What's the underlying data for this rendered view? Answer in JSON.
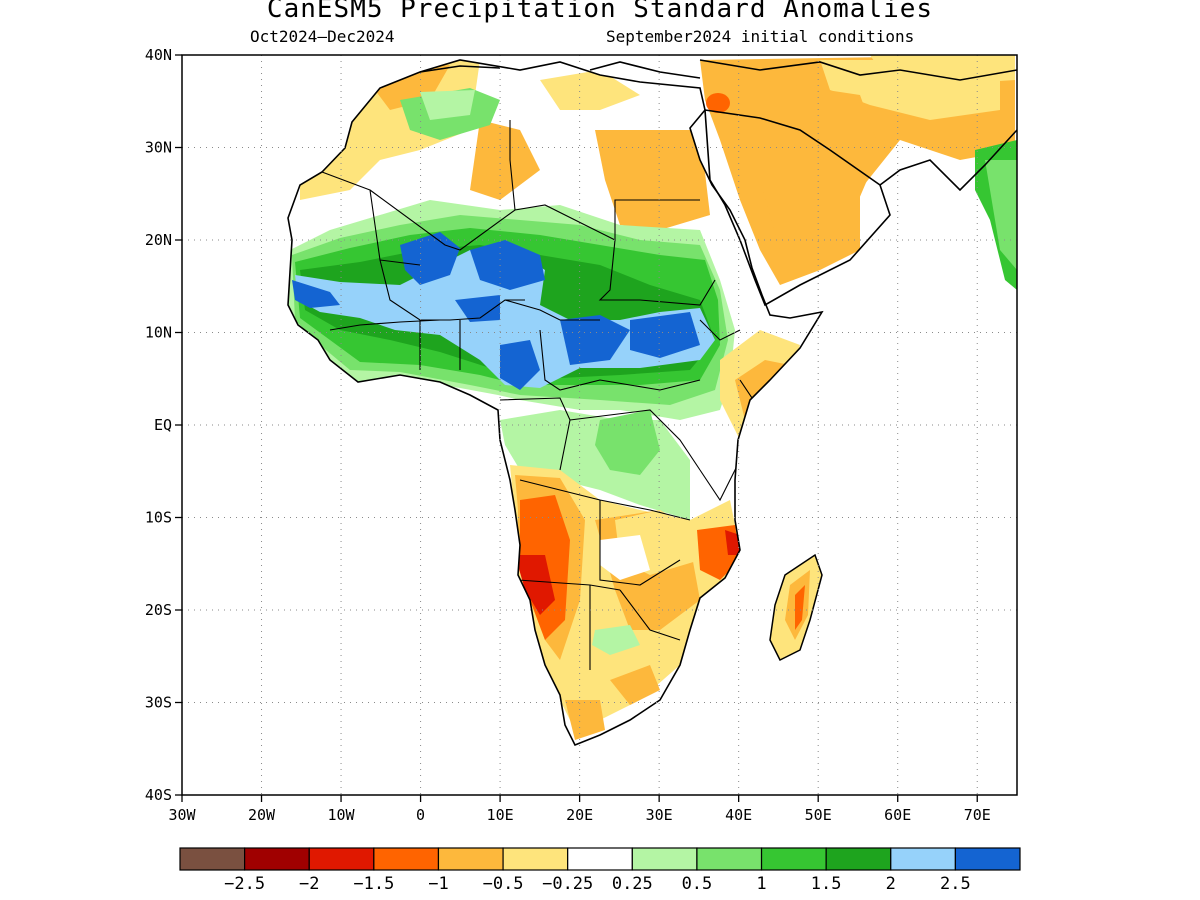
{
  "title": "CanESM5 Precipitation Standard Anomalies",
  "subtitle_left": "Oct2024–Dec2024",
  "subtitle_right": "September2024 initial conditions",
  "y_axis_labels": [
    "40N",
    "30N",
    "20N",
    "10N",
    "EQ",
    "10S",
    "20S",
    "30S",
    "40S"
  ],
  "x_axis_labels": [
    "30W",
    "20W",
    "10W",
    "0",
    "10E",
    "20E",
    "30E",
    "40E",
    "50E",
    "60E",
    "70E"
  ],
  "colorbar": {
    "colors": [
      "#7a5040",
      "#a00000",
      "#e01800",
      "#ff6400",
      "#fdb83c",
      "#fee47c",
      "#ffffff",
      "#b4f5a4",
      "#78e26c",
      "#36c632",
      "#1ea41e",
      "#96d2fa",
      "#1464d2"
    ],
    "labels": [
      "−2.5",
      "−2",
      "−1.5",
      "−1",
      "−0.5",
      "−0.25",
      "0.25",
      "0.5",
      "1",
      "1.5",
      "2",
      "2.5"
    ]
  },
  "map_extent": {
    "lon_min": -30,
    "lon_max": 75,
    "lat_min": -40,
    "lat_max": 40
  },
  "legend_values": [
    -2.5,
    -2,
    -1.5,
    -1,
    -0.5,
    -0.25,
    0.25,
    0.5,
    1,
    1.5,
    2,
    2.5
  ]
}
